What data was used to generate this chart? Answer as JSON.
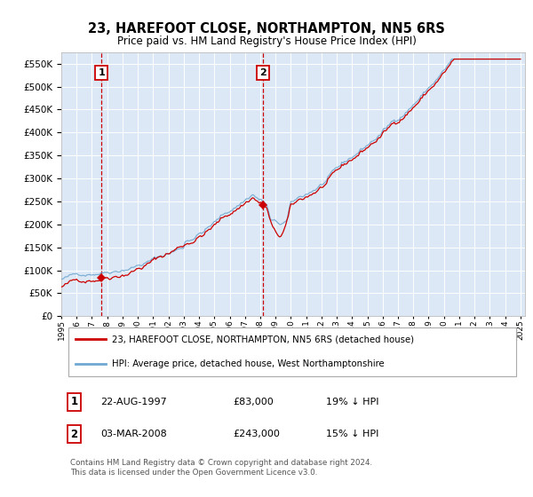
{
  "title": "23, HAREFOOT CLOSE, NORTHAMPTON, NN5 6RS",
  "subtitle": "Price paid vs. HM Land Registry's House Price Index (HPI)",
  "legend_line1": "23, HAREFOOT CLOSE, NORTHAMPTON, NN5 6RS (detached house)",
  "legend_line2": "HPI: Average price, detached house, West Northamptonshire",
  "annotation1_date": "22-AUG-1997",
  "annotation1_price": "£83,000",
  "annotation1_hpi": "19% ↓ HPI",
  "annotation2_date": "03-MAR-2008",
  "annotation2_price": "£243,000",
  "annotation2_hpi": "15% ↓ HPI",
  "footer": "Contains HM Land Registry data © Crown copyright and database right 2024.\nThis data is licensed under the Open Government Licence v3.0.",
  "plot_bg": "#dce8f5",
  "red_color": "#cc0000",
  "blue_color": "#6fa8d0",
  "vline_color": "#cc0000",
  "ylim": [
    0,
    575000
  ],
  "yticks": [
    0,
    50000,
    100000,
    150000,
    200000,
    250000,
    300000,
    350000,
    400000,
    450000,
    500000,
    550000
  ],
  "xtick_years": [
    1995,
    1996,
    1997,
    1998,
    1999,
    2000,
    2001,
    2002,
    2003,
    2004,
    2005,
    2006,
    2007,
    2008,
    2009,
    2010,
    2011,
    2012,
    2013,
    2014,
    2015,
    2016,
    2017,
    2018,
    2019,
    2020,
    2021,
    2022,
    2023,
    2024,
    2025
  ],
  "sale1_x": 1997.64,
  "sale1_y": 83000,
  "sale2_x": 2008.17,
  "sale2_y": 243000,
  "xlim_min": 1995,
  "xlim_max": 2025.3
}
